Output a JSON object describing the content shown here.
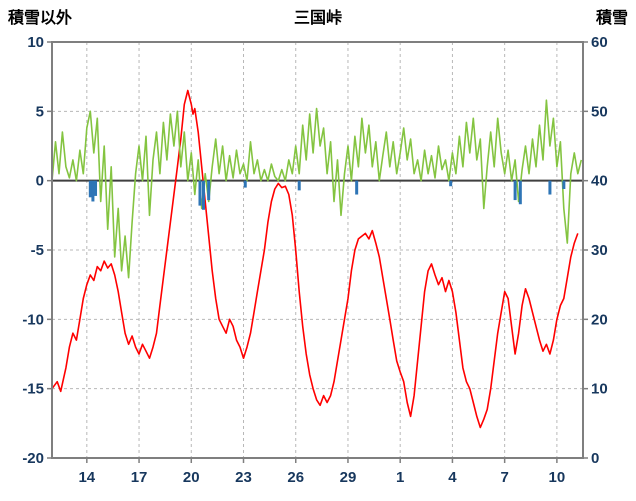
{
  "header": {
    "left_axis_title": "積雪以外",
    "title": "三国峠",
    "right_axis_title": "積雪"
  },
  "colors": {
    "temperature_line": "#ff0000",
    "snow_line": "#84c441",
    "bar": "#2e75b6",
    "zero_line": "#3f3f3f",
    "frame": "#7f7f7f",
    "grid": "#b8b8b8",
    "axis_text": "#17375d"
  },
  "chart_data": {
    "type": "line",
    "title": "三国峠",
    "left_axis": {
      "label": "積雪以外",
      "range": [
        -20,
        10
      ],
      "ticks": [
        10,
        5,
        0,
        -5,
        -10,
        -15,
        -20
      ]
    },
    "right_axis": {
      "label": "積雪",
      "range": [
        0,
        60
      ],
      "ticks": [
        60,
        50,
        40,
        30,
        20,
        10,
        0
      ]
    },
    "x_axis": {
      "tick_labels": [
        "14",
        "17",
        "20",
        "23",
        "26",
        "29",
        "1",
        "4",
        "7",
        "10"
      ],
      "tick_days": [
        2,
        5,
        8,
        11,
        14,
        17,
        20,
        23,
        26,
        29
      ],
      "domain_days": [
        0,
        30.5
      ]
    },
    "grid": true,
    "legend": "none",
    "series": [
      {
        "name": "red-line",
        "type": "line",
        "axis": "left",
        "color": "#ff0000",
        "points": [
          [
            0,
            -15
          ],
          [
            0.3,
            -14.5
          ],
          [
            0.5,
            -15.2
          ],
          [
            0.8,
            -13.5
          ],
          [
            1,
            -12
          ],
          [
            1.2,
            -11
          ],
          [
            1.4,
            -11.5
          ],
          [
            1.6,
            -10
          ],
          [
            1.8,
            -8.5
          ],
          [
            2,
            -7.5
          ],
          [
            2.2,
            -6.8
          ],
          [
            2.4,
            -7.2
          ],
          [
            2.6,
            -6.2
          ],
          [
            2.8,
            -6.5
          ],
          [
            3,
            -5.8
          ],
          [
            3.2,
            -6.3
          ],
          [
            3.4,
            -6
          ],
          [
            3.6,
            -6.8
          ],
          [
            3.8,
            -8
          ],
          [
            4,
            -9.5
          ],
          [
            4.2,
            -11
          ],
          [
            4.4,
            -11.8
          ],
          [
            4.6,
            -11.2
          ],
          [
            4.8,
            -12
          ],
          [
            5,
            -12.5
          ],
          [
            5.2,
            -11.8
          ],
          [
            5.4,
            -12.3
          ],
          [
            5.6,
            -12.8
          ],
          [
            5.8,
            -12
          ],
          [
            6,
            -11
          ],
          [
            6.2,
            -9
          ],
          [
            6.4,
            -7
          ],
          [
            6.6,
            -5
          ],
          [
            6.8,
            -3
          ],
          [
            7,
            -1
          ],
          [
            7.2,
            1
          ],
          [
            7.4,
            3
          ],
          [
            7.6,
            5.5
          ],
          [
            7.8,
            6.5
          ],
          [
            8,
            5.5
          ],
          [
            8.1,
            4.8
          ],
          [
            8.2,
            5.2
          ],
          [
            8.4,
            3.5
          ],
          [
            8.6,
            1
          ],
          [
            8.8,
            -1.5
          ],
          [
            9,
            -4
          ],
          [
            9.2,
            -6.5
          ],
          [
            9.4,
            -8.5
          ],
          [
            9.6,
            -10
          ],
          [
            9.8,
            -10.5
          ],
          [
            10,
            -11
          ],
          [
            10.2,
            -10
          ],
          [
            10.4,
            -10.5
          ],
          [
            10.6,
            -11.5
          ],
          [
            10.8,
            -12
          ],
          [
            11,
            -12.8
          ],
          [
            11.2,
            -12
          ],
          [
            11.4,
            -11
          ],
          [
            11.6,
            -9.5
          ],
          [
            11.8,
            -8
          ],
          [
            12,
            -6.5
          ],
          [
            12.2,
            -5
          ],
          [
            12.4,
            -3
          ],
          [
            12.6,
            -1.5
          ],
          [
            12.8,
            -0.6
          ],
          [
            13,
            -0.2
          ],
          [
            13.2,
            -0.5
          ],
          [
            13.4,
            -0.4
          ],
          [
            13.6,
            -1
          ],
          [
            13.8,
            -2.5
          ],
          [
            14,
            -5
          ],
          [
            14.2,
            -8
          ],
          [
            14.4,
            -10.5
          ],
          [
            14.6,
            -12.5
          ],
          [
            14.8,
            -14
          ],
          [
            15,
            -15
          ],
          [
            15.2,
            -15.8
          ],
          [
            15.4,
            -16.2
          ],
          [
            15.6,
            -15.5
          ],
          [
            15.8,
            -16
          ],
          [
            16,
            -15.5
          ],
          [
            16.2,
            -14.5
          ],
          [
            16.4,
            -13
          ],
          [
            16.6,
            -11.5
          ],
          [
            16.8,
            -10
          ],
          [
            17,
            -8.5
          ],
          [
            17.2,
            -6.5
          ],
          [
            17.4,
            -5
          ],
          [
            17.6,
            -4.2
          ],
          [
            17.8,
            -4
          ],
          [
            18,
            -3.8
          ],
          [
            18.2,
            -4.2
          ],
          [
            18.4,
            -3.6
          ],
          [
            18.6,
            -4.5
          ],
          [
            18.8,
            -5.5
          ],
          [
            19,
            -7
          ],
          [
            19.2,
            -8.5
          ],
          [
            19.4,
            -10
          ],
          [
            19.6,
            -11.5
          ],
          [
            19.8,
            -13
          ],
          [
            20,
            -13.8
          ],
          [
            20.2,
            -14.5
          ],
          [
            20.4,
            -16
          ],
          [
            20.6,
            -17
          ],
          [
            20.8,
            -15.5
          ],
          [
            21,
            -13
          ],
          [
            21.2,
            -10.5
          ],
          [
            21.4,
            -8
          ],
          [
            21.6,
            -6.5
          ],
          [
            21.8,
            -6
          ],
          [
            22,
            -6.8
          ],
          [
            22.2,
            -7.5
          ],
          [
            22.4,
            -7
          ],
          [
            22.6,
            -8
          ],
          [
            22.8,
            -7.2
          ],
          [
            23,
            -8
          ],
          [
            23.2,
            -9.5
          ],
          [
            23.4,
            -11.5
          ],
          [
            23.6,
            -13.5
          ],
          [
            23.8,
            -14.5
          ],
          [
            24,
            -15
          ],
          [
            24.2,
            -16
          ],
          [
            24.4,
            -17
          ],
          [
            24.6,
            -17.8
          ],
          [
            24.8,
            -17.2
          ],
          [
            25,
            -16.5
          ],
          [
            25.2,
            -15
          ],
          [
            25.4,
            -13
          ],
          [
            25.6,
            -11
          ],
          [
            25.8,
            -9.5
          ],
          [
            26,
            -8
          ],
          [
            26.2,
            -8.5
          ],
          [
            26.4,
            -10.5
          ],
          [
            26.6,
            -12.5
          ],
          [
            26.8,
            -11
          ],
          [
            27,
            -9
          ],
          [
            27.2,
            -7.8
          ],
          [
            27.4,
            -8.5
          ],
          [
            27.6,
            -9.5
          ],
          [
            27.8,
            -10.5
          ],
          [
            28,
            -11.5
          ],
          [
            28.2,
            -12.3
          ],
          [
            28.4,
            -11.8
          ],
          [
            28.6,
            -12.5
          ],
          [
            28.8,
            -11.5
          ],
          [
            29,
            -10
          ],
          [
            29.2,
            -9
          ],
          [
            29.4,
            -8.5
          ],
          [
            29.6,
            -7
          ],
          [
            29.8,
            -5.5
          ],
          [
            30,
            -4.5
          ],
          [
            30.2,
            -3.8
          ]
        ]
      },
      {
        "name": "green-line",
        "type": "line",
        "axis": "right",
        "color": "#84c441",
        "x_start": 0,
        "x_step": 0.2,
        "values": [
          40,
          45.6,
          41,
          47,
          42,
          40.4,
          43,
          40,
          44.4,
          41,
          47.6,
          50,
          44,
          49,
          37,
          45,
          33,
          42,
          29,
          36,
          27,
          32,
          26,
          34,
          41,
          45,
          40,
          46.4,
          35,
          43,
          47,
          41,
          48.4,
          43,
          49.6,
          45,
          50,
          42,
          47,
          40,
          44,
          38,
          43,
          36,
          41,
          37,
          42,
          46,
          41,
          45,
          40,
          43.6,
          40.4,
          44.4,
          41,
          42.4,
          40,
          45.6,
          41,
          43,
          40,
          41.6,
          40,
          42.4,
          40.6,
          40,
          41.6,
          40,
          43,
          41,
          45,
          41,
          48,
          43,
          49.6,
          44,
          50.4,
          45,
          47.6,
          41,
          45.6,
          37,
          43,
          35,
          41,
          45,
          40,
          46.4,
          42,
          49,
          44,
          48,
          42,
          45.6,
          40,
          43.6,
          47,
          42,
          45.6,
          41,
          44,
          47.6,
          43,
          46,
          41,
          43,
          40,
          44.4,
          41,
          43.6,
          40.4,
          45,
          41.6,
          43,
          40,
          44,
          41,
          46.4,
          42,
          48.4,
          44,
          49,
          43,
          46,
          36,
          42,
          47,
          42,
          49,
          44,
          41,
          44.4,
          40,
          43,
          37,
          41.6,
          45,
          41,
          46,
          42,
          48,
          43,
          51.6,
          45,
          49,
          42,
          45.6,
          36,
          31,
          41,
          44,
          41,
          43
        ]
      },
      {
        "name": "blue-bars",
        "type": "bar",
        "axis": "right",
        "baseline": 40,
        "color": "#2e75b6",
        "points": [
          [
            2.2,
            37.6
          ],
          [
            2.35,
            37
          ],
          [
            2.5,
            37.8
          ],
          [
            8.5,
            36.4
          ],
          [
            8.7,
            35.8
          ],
          [
            9,
            37.2
          ],
          [
            11.1,
            39
          ],
          [
            14.2,
            38.6
          ],
          [
            17.5,
            38
          ],
          [
            22.9,
            39.2
          ],
          [
            26.6,
            37.2
          ],
          [
            26.9,
            36.6
          ],
          [
            28.6,
            38
          ],
          [
            29.4,
            38.8
          ]
        ]
      }
    ]
  }
}
